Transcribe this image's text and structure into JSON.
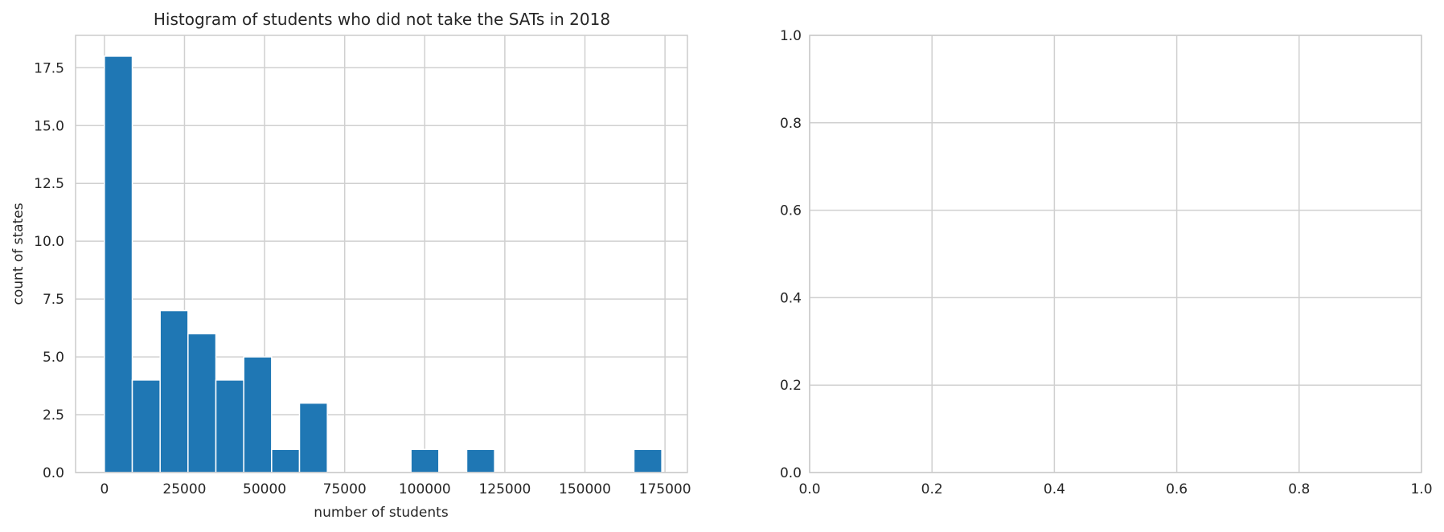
{
  "chart_data": [
    {
      "type": "bar",
      "title": "Histogram of students who did not take the SATs in 2018",
      "xlabel": "number of students",
      "ylabel": "count of states",
      "xlim": [
        -9000,
        182000
      ],
      "ylim": [
        0,
        18.9
      ],
      "xticks": [
        0,
        25000,
        50000,
        75000,
        100000,
        125000,
        150000,
        175000
      ],
      "yticks": [
        "0.0",
        "2.5",
        "5.0",
        "7.5",
        "10.0",
        "12.5",
        "15.0",
        "17.5"
      ],
      "grid": true,
      "color": "#1f77b4",
      "bins": [
        {
          "x0": 0,
          "x1": 8700,
          "count": 18
        },
        {
          "x0": 8700,
          "x1": 17400,
          "count": 4
        },
        {
          "x0": 17400,
          "x1": 26100,
          "count": 7
        },
        {
          "x0": 26100,
          "x1": 34800,
          "count": 6
        },
        {
          "x0": 34800,
          "x1": 43500,
          "count": 4
        },
        {
          "x0": 43500,
          "x1": 52200,
          "count": 5
        },
        {
          "x0": 52200,
          "x1": 60900,
          "count": 1
        },
        {
          "x0": 60900,
          "x1": 69600,
          "count": 3
        },
        {
          "x0": 69600,
          "x1": 78300,
          "count": 0
        },
        {
          "x0": 78300,
          "x1": 87000,
          "count": 0
        },
        {
          "x0": 87000,
          "x1": 95700,
          "count": 0
        },
        {
          "x0": 95700,
          "x1": 104400,
          "count": 1
        },
        {
          "x0": 104400,
          "x1": 113100,
          "count": 0
        },
        {
          "x0": 113100,
          "x1": 121800,
          "count": 1
        },
        {
          "x0": 121800,
          "x1": 130500,
          "count": 0
        },
        {
          "x0": 130500,
          "x1": 139200,
          "count": 0
        },
        {
          "x0": 139200,
          "x1": 147900,
          "count": 0
        },
        {
          "x0": 147900,
          "x1": 156600,
          "count": 0
        },
        {
          "x0": 156600,
          "x1": 165300,
          "count": 0
        },
        {
          "x0": 165300,
          "x1": 174000,
          "count": 1
        }
      ]
    },
    {
      "type": "scatter",
      "title": "",
      "xlabel": "",
      "ylabel": "",
      "xlim": [
        0,
        1
      ],
      "ylim": [
        0,
        1
      ],
      "xticks": [
        "0.0",
        "0.2",
        "0.4",
        "0.6",
        "0.8",
        "1.0"
      ],
      "yticks": [
        "0.0",
        "0.2",
        "0.4",
        "0.6",
        "0.8",
        "1.0"
      ],
      "grid": true,
      "series": []
    }
  ]
}
